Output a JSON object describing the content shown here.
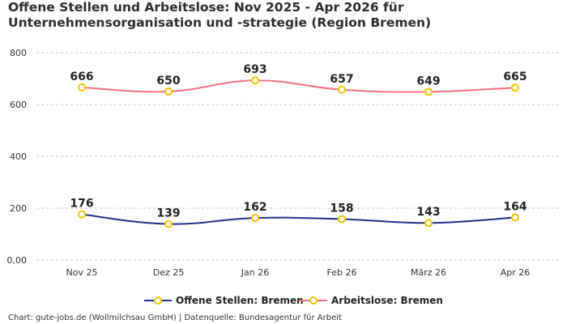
{
  "title": "Offene Stellen und Arbeitslose: Nov 2025 - Apr 2026 für Unternehmensorganisation und -strategie (Region Bremen)",
  "footer": "Chart: gute-jobs.de (Wollmilchsau GmbH) | Datenquelle: Bundesagentur für Arbeit",
  "chart_data": {
    "type": "line",
    "title": "Offene Stellen und Arbeitslose: Nov 2025 - Apr 2026 für Unternehmensorganisation und -strategie (Region Bremen)",
    "categories": [
      "Nov 25",
      "Dez 25",
      "Jan 26",
      "Feb 26",
      "März 26",
      "Apr 26"
    ],
    "series": [
      {
        "name": "Offene Stellen: Bremen",
        "color": "#1f2f8a",
        "values": [
          176,
          139,
          162,
          158,
          143,
          164
        ]
      },
      {
        "name": "Arbeitslose: Bremen",
        "color": "#f07080",
        "values": [
          666,
          650,
          693,
          657,
          649,
          665
        ]
      }
    ],
    "ylim": [
      0,
      800
    ],
    "yticks": [
      0,
      200,
      400,
      600,
      800
    ],
    "ytick_labels": [
      "0,00",
      "200",
      "400",
      "600",
      "800"
    ],
    "marker_color": "#f5c400",
    "grid": true,
    "legend": "bottom-center"
  }
}
